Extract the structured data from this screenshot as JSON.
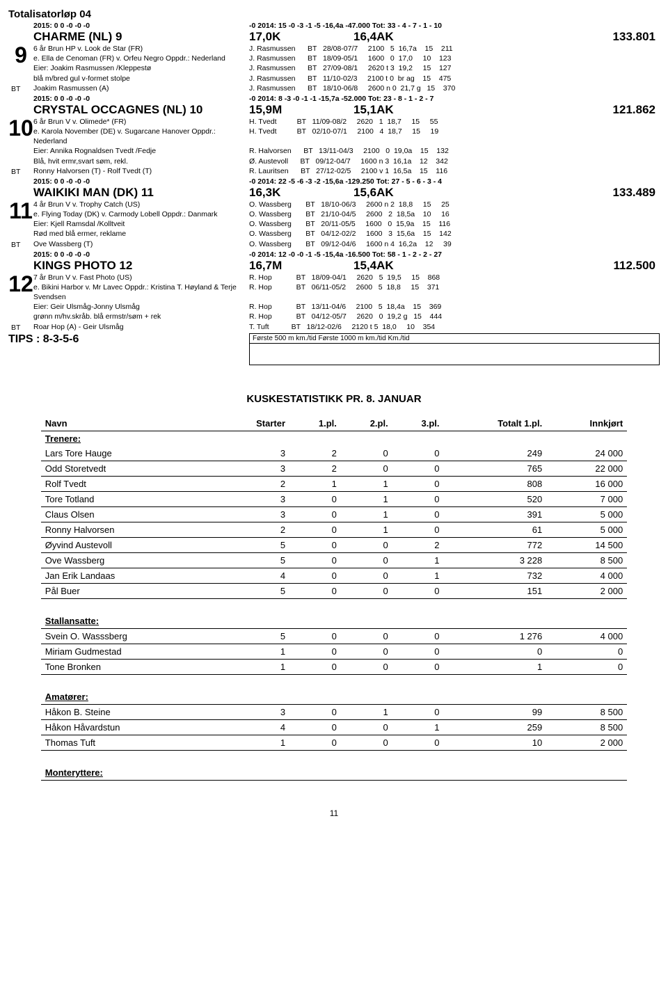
{
  "race": {
    "title": "Totalisatorløp 04"
  },
  "horses": [
    {
      "num": "9",
      "stat_l": "2015:  0    0   -0   -0   -0",
      "stat_r": "-0    2014:  15   -0   -3   -1   -5   -16,4a  -47.000       Tot: 33 - 4 - 7 - 1 - 10",
      "name": "CHARME (NL)",
      "dist": "9",
      "dist2": "17,0K",
      "rec": "16,4AK",
      "money": "133.801",
      "rows": [
        {
          "bt": "",
          "l": "6 år Brun HP v. Look de Star (FR)",
          "r": "J. Rasmussen      BT   28/08-07/7     2100   5  16,7a    15    211"
        },
        {
          "bt": "",
          "l": "e. Ella de Cenoman (FR) v. Orfeu Negro  Oppdr.: Nederland",
          "r": "J. Rasmussen      BT   18/09-05/1     1600   0  17,0     10    123"
        },
        {
          "bt": "",
          "l": "Eier: Joakim Rasmussen /Kleppestø",
          "r": "J. Rasmussen      BT   27/09-08/1     2620 t 3  19,2     15    127"
        },
        {
          "bt": "",
          "l": "blå m/bred gul v-formet stolpe",
          "r": "J. Rasmussen      BT   11/10-02/3     2100 t 0  br ag    15    475"
        },
        {
          "bt": "BT",
          "l": "Joakim Rasmussen (A)",
          "r": "J. Rasmussen      BT   18/10-06/8     2600 n 0  21,7 g   15    370"
        }
      ]
    },
    {
      "num": "10",
      "stat_l": "2015:  0    0   -0   -0   -0",
      "stat_r": "-0    2014:   8   -3   -0   -1   -1   -15,7a  -52.000       Tot: 23 - 8 - 1 - 2 - 7",
      "name": "CRYSTAL OCCAGNES (NL)",
      "dist": "10",
      "dist2": "15,9M",
      "rec": "15,1AK",
      "money": "121.862",
      "rows": [
        {
          "bt": "",
          "l": "6 år Brun V v. Olimede* (FR)",
          "r": "H. Tvedt          BT   11/09-08/2     2620   1  18,7     15     55"
        },
        {
          "bt": "",
          "l": "e. Karola November (DE) v. Sugarcane Hanover  Oppdr.: Nederland",
          "r": "H. Tvedt          BT   02/10-07/1     2100   4  18,7     15     19"
        },
        {
          "bt": "",
          "l": "Eier: Annika Rognaldsen Tvedt /Fedje",
          "r": "R. Halvorsen      BT   13/11-04/3     2100   0  19,0a    15    132"
        },
        {
          "bt": "",
          "l": "Blå, hvit ermr,svart søm, rekl.",
          "r": "Ø. Austevoll      BT   09/12-04/7     1600 n 3  16,1a    12    342"
        },
        {
          "bt": "BT",
          "l": "Ronny Halvorsen (T) - Rolf Tvedt (T)",
          "r": "R. Lauritsen      BT   27/12-02/5     2100 v 1  16,5a    15    116"
        }
      ]
    },
    {
      "num": "11",
      "stat_l": "2015:  0    0   -0   -0   -0",
      "stat_r": "-0    2014:  22   -5   -6   -3   -2   -15,6a -129.250       Tot: 27 - 5 - 6 - 3 - 4",
      "name": "WAIKIKI MAN (DK)",
      "dist": "11",
      "dist2": "16,3K",
      "rec": "15,6AK",
      "money": "133.489",
      "rows": [
        {
          "bt": "",
          "l": "4 år Brun V v. Trophy Catch (US)",
          "r": "O. Wassberg       BT   18/10-06/3     2600 n 2  18,8     15     25"
        },
        {
          "bt": "",
          "l": "e. Flying Today (DK) v. Carmody Lobell  Oppdr.: Danmark",
          "r": "O. Wassberg       BT   21/10-04/5     2600   2  18,5a    10     16"
        },
        {
          "bt": "",
          "l": "Eier: Kjell Ramsdal /Kolltveit",
          "r": "O. Wassberg       BT   20/11-05/5     1600   0  15,9a    15    116"
        },
        {
          "bt": "",
          "l": "Rød med blå ermer, reklame",
          "r": "O. Wassberg       BT   04/12-02/2     1600   3  15,6a    15    142"
        },
        {
          "bt": "BT",
          "l": "Ove Wassberg (T)",
          "r": "O. Wassberg       BT   09/12-04/6     1600 n 4  16,2a    12     39"
        }
      ]
    },
    {
      "num": "12",
      "stat_l": "2015:  0    0   -0   -0   -0",
      "stat_r": "-0    2014:  12   -0   -0   -1   -5   -15,4a  -16.500       Tot: 58 - 1 - 2 - 2 - 27",
      "name": "KINGS PHOTO",
      "dist": "12",
      "dist2": "16,7M",
      "rec": "15,4AK",
      "money": "112.500",
      "rows": [
        {
          "bt": "",
          "l": "7 år Brun V v. Fast Photo (US)",
          "r": "R. Hop            BT   18/09-04/1     2620   5  19,5     15    868"
        },
        {
          "bt": "",
          "l": "e. Bikini Harbor v. Mr Lavec  Oppdr.: Kristina T. Høyland & Terje Svendsen",
          "r": "R. Hop            BT   06/11-05/2     2600   5  18,8     15    371"
        },
        {
          "bt": "",
          "l": "Eier: Geir Ulsmåg-Jonny Ulsmåg",
          "r": "R. Hop            BT   13/11-04/6     2100   5  18,4a    15    369"
        },
        {
          "bt": "",
          "l": "grønn m/hv.skråb. blå ermstr/søm + rek",
          "r": "R. Hop            BT   04/12-05/7     2620   0  19,2 g   15    444"
        },
        {
          "bt": "BT",
          "l": "Roar Hop (A) - Geir Ulsmåg",
          "r": "T. Tuft           BT   18/12-02/6     2120 t 5  18,0     10    354"
        }
      ]
    }
  ],
  "tips": "TIPS : 8-3-5-6",
  "tips_header": "Første 500 m km./tid    Første 1000 m km./tid  Km./tid",
  "stats": {
    "title": "KUSKESTATISTIKK PR. 8. JANUAR",
    "headers": [
      "Navn",
      "Starter",
      "1.pl.",
      "2.pl.",
      "3.pl.",
      "Totalt 1.pl.",
      "Innkjørt"
    ],
    "sections": [
      {
        "name": "Trenere:",
        "rows": [
          [
            "Lars Tore Hauge",
            "3",
            "2",
            "0",
            "0",
            "249",
            "24 000"
          ],
          [
            "Odd Storetvedt",
            "3",
            "2",
            "0",
            "0",
            "765",
            "22 000"
          ],
          [
            "Rolf Tvedt",
            "2",
            "1",
            "1",
            "0",
            "808",
            "16 000"
          ],
          [
            "Tore Totland",
            "3",
            "0",
            "1",
            "0",
            "520",
            "7 000"
          ],
          [
            "Claus Olsen",
            "3",
            "0",
            "1",
            "0",
            "391",
            "5 000"
          ],
          [
            "Ronny Halvorsen",
            "2",
            "0",
            "1",
            "0",
            "61",
            "5 000"
          ],
          [
            "Øyvind Austevoll",
            "5",
            "0",
            "0",
            "2",
            "772",
            "14 500"
          ],
          [
            "Ove Wassberg",
            "5",
            "0",
            "0",
            "1",
            "3 228",
            "8 500"
          ],
          [
            "Jan Erik Landaas",
            "4",
            "0",
            "0",
            "1",
            "732",
            "4 000"
          ],
          [
            "Pål Buer",
            "5",
            "0",
            "0",
            "0",
            "151",
            "2 000"
          ]
        ]
      },
      {
        "name": "Stallansatte:",
        "rows": [
          [
            "Svein O. Wasssberg",
            "5",
            "0",
            "0",
            "0",
            "1 276",
            "4 000"
          ],
          [
            "Miriam Gudmestad",
            "1",
            "0",
            "0",
            "0",
            "0",
            "0"
          ],
          [
            "Tone Bronken",
            "1",
            "0",
            "0",
            "0",
            "1",
            "0"
          ]
        ]
      },
      {
        "name": "Amatører:",
        "rows": [
          [
            "Håkon B. Steine",
            "3",
            "0",
            "1",
            "0",
            "99",
            "8 500"
          ],
          [
            "Håkon Håvardstun",
            "4",
            "0",
            "0",
            "1",
            "259",
            "8 500"
          ],
          [
            "Thomas Tuft",
            "1",
            "0",
            "0",
            "0",
            "10",
            "2 000"
          ]
        ]
      },
      {
        "name": "Monteryttere:",
        "rows": []
      }
    ]
  },
  "page_num": "11"
}
